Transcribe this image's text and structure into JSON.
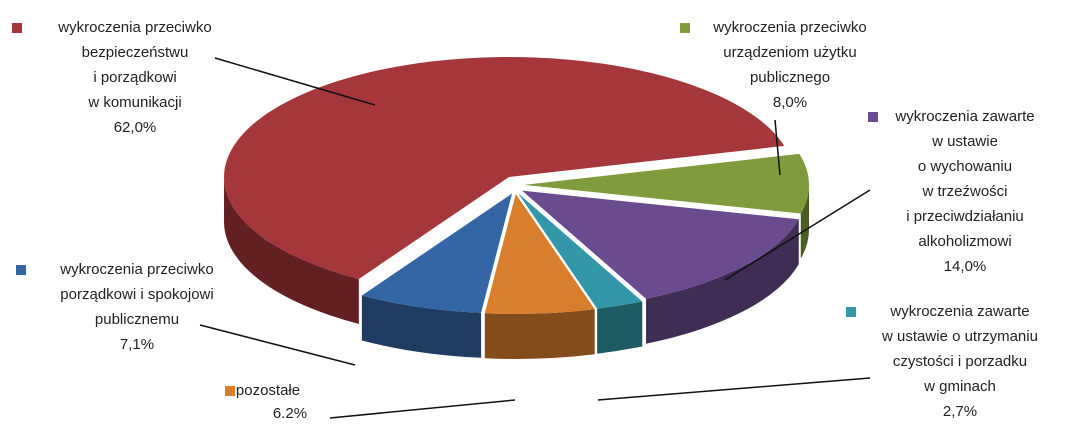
{
  "chart_data": {
    "type": "pie",
    "categories": [
      [
        "wykroczenia przeciwko",
        "urządzeniom użytku",
        "publicznego"
      ],
      [
        "wykroczenia zawarte",
        "w ustawie",
        "o wychowaniu",
        "w trzeźwości",
        "i przeciwdziałaniu",
        "alkoholizmowi"
      ],
      [
        "wykroczenia zawarte",
        "w ustawie o utrzymaniu",
        "czystości i porzadku",
        "w gminach"
      ],
      [
        "pozostałe"
      ],
      [
        "wykroczenia przeciwko",
        "porządkowi i spokojowi",
        "publicznemu"
      ],
      [
        "wykroczenia przeciwko",
        "bezpieczeństwu",
        "i porządkowi",
        "w komunikacji"
      ]
    ],
    "values": [
      8.0,
      14.0,
      2.7,
      6.2,
      7.1,
      62.0
    ],
    "value_labels": [
      "8,0%",
      "14,0%",
      "2,7%",
      "6.2%",
      "7,1%",
      "62,0%"
    ],
    "colors": [
      "#7f9b3b",
      "#6a4b8d",
      "#3197a9",
      "#d97e2d",
      "#3466a5",
      "#a5363a"
    ]
  }
}
